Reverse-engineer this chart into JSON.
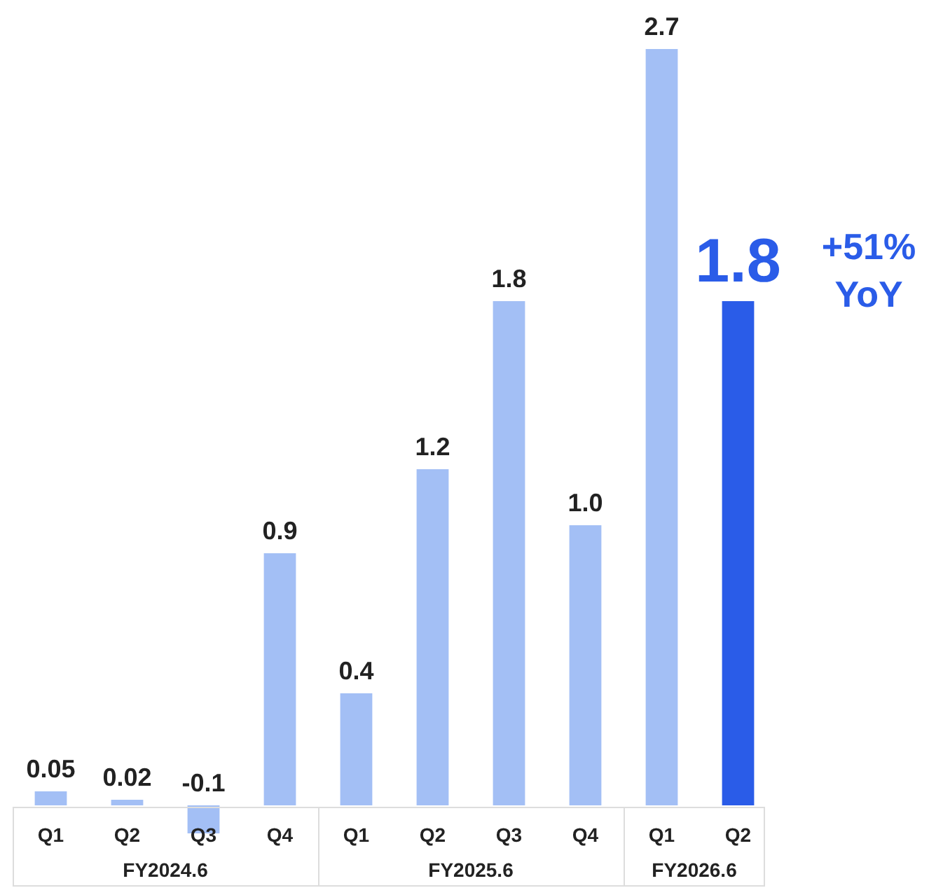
{
  "chart_data": {
    "type": "bar",
    "categories": [
      "Q1",
      "Q2",
      "Q3",
      "Q4",
      "Q1",
      "Q2",
      "Q3",
      "Q4",
      "Q1",
      "Q2"
    ],
    "values": [
      0.05,
      0.02,
      -0.1,
      0.9,
      0.4,
      1.2,
      1.8,
      1.0,
      2.7,
      1.8
    ],
    "colors": [
      "#a3bff5",
      "#a3bff5",
      "#a3bff5",
      "#a3bff5",
      "#a3bff5",
      "#a3bff5",
      "#a3bff5",
      "#a3bff5",
      "#a3bff5",
      "#2a5ce8"
    ],
    "value_labels": [
      "0.05",
      "0.02",
      "-0.1",
      "0.9",
      "0.4",
      "1.2",
      "1.8",
      "1.0",
      "2.7",
      "1.8"
    ],
    "annotations": [
      "FY2024.6",
      "FY2025.6",
      "FY2026.6",
      "+51% YoY"
    ]
  }
}
